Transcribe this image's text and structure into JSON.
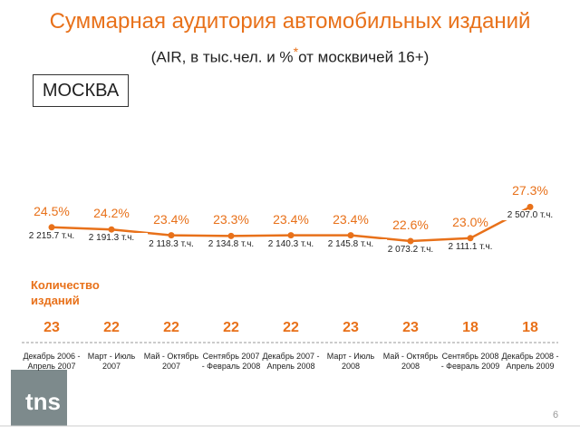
{
  "chart_data": {
    "type": "line",
    "title": "Суммарная аудитория автомобильных изданий",
    "subtitle": "(AIR, в тыс.чел. и %",
    "subtitle_mark": "*",
    "subtitle_end": "от москвичей 16+)",
    "region": "МОСКВА",
    "color": "#e8711a",
    "categories": [
      "Декабрь 2006 - Апрель 2007",
      "Март - Июль 2007",
      "Май - Октябрь 2007",
      "Сентябрь 2007 - Февраль 2008",
      "Декабрь 2007 - Апрель 2008",
      "Март - Июль 2008",
      "Май - Октябрь 2008",
      "Сентябрь 2008 - Февраль 2009",
      "Декабрь 2008 - Апрель 2009"
    ],
    "values": [
      24.5,
      24.2,
      23.4,
      23.3,
      23.4,
      23.4,
      22.6,
      23.0,
      27.3
    ],
    "value_labels": [
      "24.5%",
      "24.2%",
      "23.4%",
      "23.3%",
      "23.4%",
      "23.4%",
      "22.6%",
      "23.0%",
      "27.3%"
    ],
    "audience_labels": [
      "2 215.7 т.ч.",
      "2 191.3 т.ч.",
      "2 118.3 т.ч.",
      "2 134.8 т.ч.",
      "2 140.3 т.ч.",
      "2 145.8 т.ч.",
      "2 073.2 т.ч.",
      "2 111.1 т.ч.",
      "2 507.0 т.ч."
    ],
    "counts_label": "Количество изданий",
    "counts": [
      23,
      22,
      22,
      22,
      22,
      23,
      23,
      18,
      18
    ],
    "logo": "tns",
    "page_number": "6"
  }
}
